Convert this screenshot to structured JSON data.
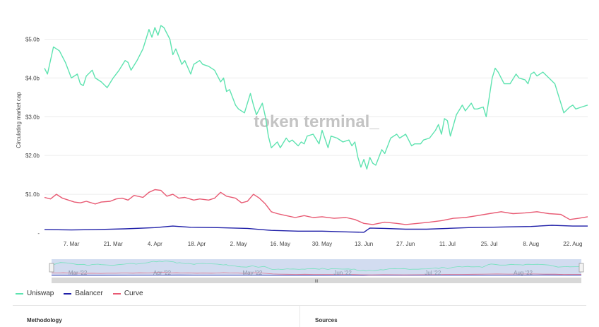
{
  "chart_data": {
    "type": "line",
    "ylabel": "Circulating market cap",
    "watermark": "token terminal_",
    "y_unit": "billions USD",
    "ylim": [
      0,
      5.5
    ],
    "y_ticks": [
      {
        "value": 0,
        "label": "-"
      },
      {
        "value": 1,
        "label": "$1.0b"
      },
      {
        "value": 2,
        "label": "$2.0b"
      },
      {
        "value": 3,
        "label": "$3.0b"
      },
      {
        "value": 4,
        "label": "$4.0b"
      },
      {
        "value": 5,
        "label": "$5.0b"
      }
    ],
    "x_range": [
      "2022-02-26",
      "2022-08-27"
    ],
    "x_ticks": [
      {
        "date": "2022-03-07",
        "label": "7. Mar"
      },
      {
        "date": "2022-03-21",
        "label": "21. Mar"
      },
      {
        "date": "2022-04-04",
        "label": "4. Apr"
      },
      {
        "date": "2022-04-18",
        "label": "18. Apr"
      },
      {
        "date": "2022-05-02",
        "label": "2. May"
      },
      {
        "date": "2022-05-16",
        "label": "16. May"
      },
      {
        "date": "2022-05-30",
        "label": "30. May"
      },
      {
        "date": "2022-06-13",
        "label": "13. Jun"
      },
      {
        "date": "2022-06-27",
        "label": "27. Jun"
      },
      {
        "date": "2022-07-11",
        "label": "11. Jul"
      },
      {
        "date": "2022-07-25",
        "label": "25. Jul"
      },
      {
        "date": "2022-08-08",
        "label": "8. Aug"
      },
      {
        "date": "2022-08-22",
        "label": "22. Aug"
      }
    ],
    "grid": true,
    "legend_position": "bottom-left",
    "series": [
      {
        "name": "Uniswap",
        "color": "#5ee3b0",
        "points": [
          [
            "2022-02-26",
            4.25
          ],
          [
            "2022-02-27",
            4.1
          ],
          [
            "2022-03-01",
            4.8
          ],
          [
            "2022-03-03",
            4.7
          ],
          [
            "2022-03-05",
            4.4
          ],
          [
            "2022-03-07",
            4.0
          ],
          [
            "2022-03-09",
            4.1
          ],
          [
            "2022-03-10",
            3.85
          ],
          [
            "2022-03-11",
            3.8
          ],
          [
            "2022-03-12",
            4.05
          ],
          [
            "2022-03-14",
            4.2
          ],
          [
            "2022-03-15",
            4.0
          ],
          [
            "2022-03-17",
            3.9
          ],
          [
            "2022-03-19",
            3.75
          ],
          [
            "2022-03-21",
            4.0
          ],
          [
            "2022-03-23",
            4.2
          ],
          [
            "2022-03-25",
            4.45
          ],
          [
            "2022-03-26",
            4.4
          ],
          [
            "2022-03-27",
            4.2
          ],
          [
            "2022-03-29",
            4.45
          ],
          [
            "2022-03-31",
            4.75
          ],
          [
            "2022-04-01",
            5.0
          ],
          [
            "2022-04-02",
            5.25
          ],
          [
            "2022-04-03",
            5.05
          ],
          [
            "2022-04-04",
            5.3
          ],
          [
            "2022-04-05",
            5.1
          ],
          [
            "2022-04-06",
            5.35
          ],
          [
            "2022-04-07",
            5.3
          ],
          [
            "2022-04-09",
            5.0
          ],
          [
            "2022-04-10",
            4.6
          ],
          [
            "2022-04-11",
            4.75
          ],
          [
            "2022-04-13",
            4.35
          ],
          [
            "2022-04-14",
            4.45
          ],
          [
            "2022-04-16",
            4.1
          ],
          [
            "2022-04-17",
            4.35
          ],
          [
            "2022-04-19",
            4.45
          ],
          [
            "2022-04-20",
            4.35
          ],
          [
            "2022-04-22",
            4.3
          ],
          [
            "2022-04-24",
            4.2
          ],
          [
            "2022-04-26",
            3.9
          ],
          [
            "2022-04-27",
            4.0
          ],
          [
            "2022-04-28",
            3.65
          ],
          [
            "2022-04-29",
            3.7
          ],
          [
            "2022-05-01",
            3.3
          ],
          [
            "2022-05-02",
            3.2
          ],
          [
            "2022-05-04",
            3.1
          ],
          [
            "2022-05-06",
            3.6
          ],
          [
            "2022-05-07",
            3.3
          ],
          [
            "2022-05-08",
            3.05
          ],
          [
            "2022-05-10",
            3.35
          ],
          [
            "2022-05-11",
            3.0
          ],
          [
            "2022-05-12",
            2.5
          ],
          [
            "2022-05-13",
            2.2
          ],
          [
            "2022-05-15",
            2.35
          ],
          [
            "2022-05-16",
            2.2
          ],
          [
            "2022-05-18",
            2.45
          ],
          [
            "2022-05-19",
            2.35
          ],
          [
            "2022-05-20",
            2.4
          ],
          [
            "2022-05-22",
            2.25
          ],
          [
            "2022-05-23",
            2.35
          ],
          [
            "2022-05-24",
            2.3
          ],
          [
            "2022-05-25",
            2.5
          ],
          [
            "2022-05-27",
            2.55
          ],
          [
            "2022-05-29",
            2.3
          ],
          [
            "2022-05-30",
            2.65
          ],
          [
            "2022-06-01",
            2.2
          ],
          [
            "2022-06-02",
            2.5
          ],
          [
            "2022-06-04",
            2.45
          ],
          [
            "2022-06-06",
            2.35
          ],
          [
            "2022-06-08",
            2.4
          ],
          [
            "2022-06-09",
            2.25
          ],
          [
            "2022-06-10",
            2.35
          ],
          [
            "2022-06-11",
            1.95
          ],
          [
            "2022-06-12",
            1.7
          ],
          [
            "2022-06-13",
            1.9
          ],
          [
            "2022-06-14",
            1.65
          ],
          [
            "2022-06-15",
            1.95
          ],
          [
            "2022-06-16",
            1.8
          ],
          [
            "2022-06-17",
            1.75
          ],
          [
            "2022-06-19",
            2.15
          ],
          [
            "2022-06-20",
            2.05
          ],
          [
            "2022-06-21",
            2.25
          ],
          [
            "2022-06-22",
            2.45
          ],
          [
            "2022-06-24",
            2.55
          ],
          [
            "2022-06-25",
            2.45
          ],
          [
            "2022-06-27",
            2.55
          ],
          [
            "2022-06-28",
            2.4
          ],
          [
            "2022-06-29",
            2.25
          ],
          [
            "2022-06-30",
            2.3
          ],
          [
            "2022-07-02",
            2.3
          ],
          [
            "2022-07-03",
            2.4
          ],
          [
            "2022-07-05",
            2.45
          ],
          [
            "2022-07-07",
            2.65
          ],
          [
            "2022-07-08",
            2.8
          ],
          [
            "2022-07-09",
            2.55
          ],
          [
            "2022-07-10",
            2.95
          ],
          [
            "2022-07-11",
            2.9
          ],
          [
            "2022-07-12",
            2.5
          ],
          [
            "2022-07-14",
            3.05
          ],
          [
            "2022-07-16",
            3.3
          ],
          [
            "2022-07-17",
            3.15
          ],
          [
            "2022-07-19",
            3.35
          ],
          [
            "2022-07-20",
            3.2
          ],
          [
            "2022-07-21",
            3.2
          ],
          [
            "2022-07-23",
            3.25
          ],
          [
            "2022-07-24",
            3.0
          ],
          [
            "2022-07-25",
            3.5
          ],
          [
            "2022-07-26",
            4.0
          ],
          [
            "2022-07-27",
            4.25
          ],
          [
            "2022-07-28",
            4.15
          ],
          [
            "2022-07-30",
            3.85
          ],
          [
            "2022-08-01",
            3.85
          ],
          [
            "2022-08-03",
            4.1
          ],
          [
            "2022-08-04",
            4.0
          ],
          [
            "2022-08-06",
            3.95
          ],
          [
            "2022-08-07",
            3.85
          ],
          [
            "2022-08-08",
            4.1
          ],
          [
            "2022-08-09",
            4.15
          ],
          [
            "2022-08-10",
            4.05
          ],
          [
            "2022-08-12",
            4.15
          ],
          [
            "2022-08-14",
            4.0
          ],
          [
            "2022-08-16",
            3.85
          ],
          [
            "2022-08-17",
            3.6
          ],
          [
            "2022-08-18",
            3.35
          ],
          [
            "2022-08-19",
            3.1
          ],
          [
            "2022-08-21",
            3.25
          ],
          [
            "2022-08-22",
            3.3
          ],
          [
            "2022-08-23",
            3.2
          ],
          [
            "2022-08-25",
            3.25
          ],
          [
            "2022-08-27",
            3.3
          ]
        ]
      },
      {
        "name": "Balancer",
        "color": "#1f1fa8",
        "points": [
          [
            "2022-02-26",
            0.09
          ],
          [
            "2022-03-07",
            0.08
          ],
          [
            "2022-03-15",
            0.09
          ],
          [
            "2022-03-25",
            0.11
          ],
          [
            "2022-04-04",
            0.14
          ],
          [
            "2022-04-10",
            0.18
          ],
          [
            "2022-04-16",
            0.15
          ],
          [
            "2022-04-25",
            0.14
          ],
          [
            "2022-05-05",
            0.12
          ],
          [
            "2022-05-13",
            0.07
          ],
          [
            "2022-05-22",
            0.05
          ],
          [
            "2022-05-30",
            0.05
          ],
          [
            "2022-06-08",
            0.03
          ],
          [
            "2022-06-13",
            0.02
          ],
          [
            "2022-06-15",
            0.13
          ],
          [
            "2022-06-20",
            0.12
          ],
          [
            "2022-06-27",
            0.1
          ],
          [
            "2022-07-04",
            0.1
          ],
          [
            "2022-07-11",
            0.12
          ],
          [
            "2022-07-18",
            0.14
          ],
          [
            "2022-07-25",
            0.15
          ],
          [
            "2022-08-01",
            0.16
          ],
          [
            "2022-08-08",
            0.17
          ],
          [
            "2022-08-15",
            0.2
          ],
          [
            "2022-08-22",
            0.18
          ],
          [
            "2022-08-27",
            0.18
          ]
        ]
      },
      {
        "name": "Curve",
        "color": "#e85a73",
        "points": [
          [
            "2022-02-26",
            0.92
          ],
          [
            "2022-02-28",
            0.88
          ],
          [
            "2022-03-02",
            1.0
          ],
          [
            "2022-03-04",
            0.9
          ],
          [
            "2022-03-06",
            0.85
          ],
          [
            "2022-03-08",
            0.8
          ],
          [
            "2022-03-10",
            0.78
          ],
          [
            "2022-03-12",
            0.82
          ],
          [
            "2022-03-15",
            0.75
          ],
          [
            "2022-03-17",
            0.8
          ],
          [
            "2022-03-20",
            0.82
          ],
          [
            "2022-03-22",
            0.88
          ],
          [
            "2022-03-24",
            0.9
          ],
          [
            "2022-03-26",
            0.85
          ],
          [
            "2022-03-28",
            0.97
          ],
          [
            "2022-03-31",
            0.92
          ],
          [
            "2022-04-02",
            1.05
          ],
          [
            "2022-04-04",
            1.12
          ],
          [
            "2022-04-06",
            1.1
          ],
          [
            "2022-04-08",
            0.95
          ],
          [
            "2022-04-10",
            1.0
          ],
          [
            "2022-04-12",
            0.9
          ],
          [
            "2022-04-14",
            0.92
          ],
          [
            "2022-04-17",
            0.85
          ],
          [
            "2022-04-19",
            0.88
          ],
          [
            "2022-04-22",
            0.85
          ],
          [
            "2022-04-24",
            0.9
          ],
          [
            "2022-04-26",
            1.05
          ],
          [
            "2022-04-28",
            0.95
          ],
          [
            "2022-05-01",
            0.9
          ],
          [
            "2022-05-03",
            0.78
          ],
          [
            "2022-05-05",
            0.82
          ],
          [
            "2022-05-07",
            1.0
          ],
          [
            "2022-05-09",
            0.9
          ],
          [
            "2022-05-11",
            0.75
          ],
          [
            "2022-05-13",
            0.55
          ],
          [
            "2022-05-15",
            0.5
          ],
          [
            "2022-05-18",
            0.45
          ],
          [
            "2022-05-21",
            0.4
          ],
          [
            "2022-05-24",
            0.45
          ],
          [
            "2022-05-27",
            0.4
          ],
          [
            "2022-05-30",
            0.42
          ],
          [
            "2022-06-03",
            0.38
          ],
          [
            "2022-06-07",
            0.4
          ],
          [
            "2022-06-10",
            0.35
          ],
          [
            "2022-06-13",
            0.25
          ],
          [
            "2022-06-16",
            0.22
          ],
          [
            "2022-06-20",
            0.28
          ],
          [
            "2022-06-24",
            0.25
          ],
          [
            "2022-06-27",
            0.22
          ],
          [
            "2022-07-01",
            0.25
          ],
          [
            "2022-07-05",
            0.28
          ],
          [
            "2022-07-09",
            0.32
          ],
          [
            "2022-07-13",
            0.38
          ],
          [
            "2022-07-17",
            0.4
          ],
          [
            "2022-07-21",
            0.45
          ],
          [
            "2022-07-25",
            0.5
          ],
          [
            "2022-07-29",
            0.55
          ],
          [
            "2022-08-02",
            0.5
          ],
          [
            "2022-08-06",
            0.52
          ],
          [
            "2022-08-10",
            0.55
          ],
          [
            "2022-08-14",
            0.5
          ],
          [
            "2022-08-18",
            0.48
          ],
          [
            "2022-08-21",
            0.35
          ],
          [
            "2022-08-24",
            0.38
          ],
          [
            "2022-08-27",
            0.42
          ]
        ]
      }
    ],
    "navigator": {
      "labels": [
        "Mar '22",
        "Apr '22",
        "May '22",
        "Jun '22",
        "Jul '22",
        "Aug '22"
      ],
      "handle_symbol": "III"
    }
  },
  "footer": {
    "left_label": "Methodology",
    "right_label": "Sources"
  }
}
